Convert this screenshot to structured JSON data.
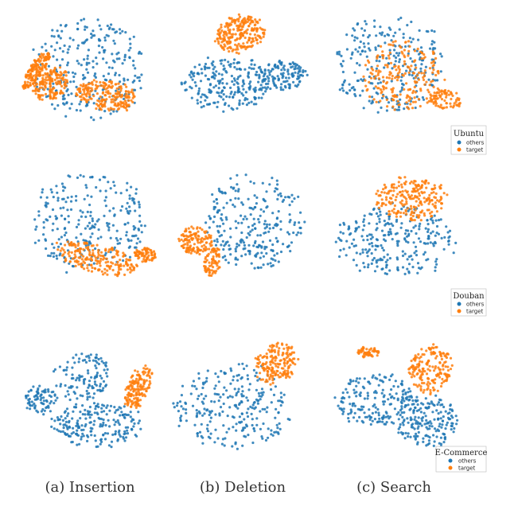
{
  "chart_data": {
    "type": "scatter",
    "columns": [
      "(a) Insertion",
      "(b) Deletion",
      "(c) Search"
    ],
    "rows": [
      "Ubuntu",
      "Douban",
      "E-Commerce"
    ],
    "series": [
      {
        "name": "others",
        "color": "#1f77b4"
      },
      {
        "name": "target",
        "color": "#ff7f0e"
      }
    ],
    "legends": [
      {
        "title": "Ubuntu",
        "entries": [
          "others",
          "target"
        ]
      },
      {
        "title": "Douban",
        "entries": [
          "others",
          "target"
        ]
      },
      {
        "title": "E-Commerce",
        "entries": [
          "others",
          "target"
        ]
      }
    ],
    "panels": [
      {
        "row": 0,
        "col": 0,
        "others": [
          [
            0.5,
            0.5,
            0.42,
            0.42,
            0.9,
            1.0
          ]
        ],
        "target": [
          [
            0.22,
            0.62,
            0.12,
            0.15,
            0.4,
            0.6
          ],
          [
            0.62,
            0.72,
            0.22,
            0.12,
            0.2,
            0.8
          ],
          [
            0.12,
            0.5,
            0.05,
            0.18,
            0.5,
            0.6
          ]
        ]
      },
      {
        "row": 0,
        "col": 1,
        "others": [
          [
            0.4,
            0.62,
            0.32,
            0.22,
            -0.1,
            0.9
          ],
          [
            0.8,
            0.55,
            0.18,
            0.12,
            0,
            0.45
          ]
        ],
        "target": [
          [
            0.5,
            0.2,
            0.18,
            0.15,
            -0.5,
            0.9
          ]
        ]
      },
      {
        "row": 0,
        "col": 2,
        "others": [
          [
            0.45,
            0.45,
            0.38,
            0.4,
            0.35,
            1.0
          ]
        ],
        "target": [
          [
            0.55,
            0.55,
            0.3,
            0.3,
            0.4,
            0.8
          ],
          [
            0.85,
            0.75,
            0.12,
            0.08,
            0.3,
            0.3
          ]
        ]
      },
      {
        "row": 1,
        "col": 0,
        "others": [
          [
            0.5,
            0.45,
            0.42,
            0.4,
            0.2,
            1.0
          ]
        ],
        "target": [
          [
            0.55,
            0.75,
            0.3,
            0.12,
            0.3,
            0.8
          ],
          [
            0.9,
            0.72,
            0.08,
            0.06,
            0,
            0.3
          ]
        ]
      },
      {
        "row": 1,
        "col": 1,
        "others": [
          [
            0.6,
            0.45,
            0.35,
            0.4,
            0,
            1.0
          ]
        ],
        "target": [
          [
            0.18,
            0.6,
            0.12,
            0.12,
            0.6,
            0.5
          ],
          [
            0.3,
            0.78,
            0.06,
            0.12,
            0.2,
            0.3
          ]
        ]
      },
      {
        "row": 1,
        "col": 2,
        "others": [
          [
            0.5,
            0.6,
            0.42,
            0.3,
            0,
            1.0
          ]
        ],
        "target": [
          [
            0.6,
            0.25,
            0.25,
            0.18,
            0,
            0.9
          ]
        ]
      },
      {
        "row": 2,
        "col": 0,
        "others": [
          [
            0.45,
            0.35,
            0.2,
            0.2,
            0,
            0.45
          ],
          [
            0.55,
            0.75,
            0.32,
            0.2,
            0,
            0.8
          ],
          [
            0.15,
            0.55,
            0.12,
            0.12,
            0,
            0.3
          ]
        ],
        "target": [
          [
            0.85,
            0.45,
            0.08,
            0.2,
            0.3,
            0.6
          ]
        ]
      },
      {
        "row": 2,
        "col": 1,
        "others": [
          [
            0.45,
            0.6,
            0.42,
            0.35,
            0,
            1.0
          ]
        ],
        "target": [
          [
            0.75,
            0.25,
            0.15,
            0.18,
            0.4,
            0.7
          ]
        ]
      },
      {
        "row": 2,
        "col": 2,
        "others": [
          [
            0.35,
            0.55,
            0.28,
            0.22,
            0,
            0.7
          ],
          [
            0.72,
            0.72,
            0.22,
            0.22,
            0,
            0.7
          ]
        ],
        "target": [
          [
            0.75,
            0.3,
            0.15,
            0.2,
            0.2,
            0.7
          ],
          [
            0.3,
            0.15,
            0.08,
            0.05,
            0,
            0.2
          ]
        ]
      }
    ]
  }
}
